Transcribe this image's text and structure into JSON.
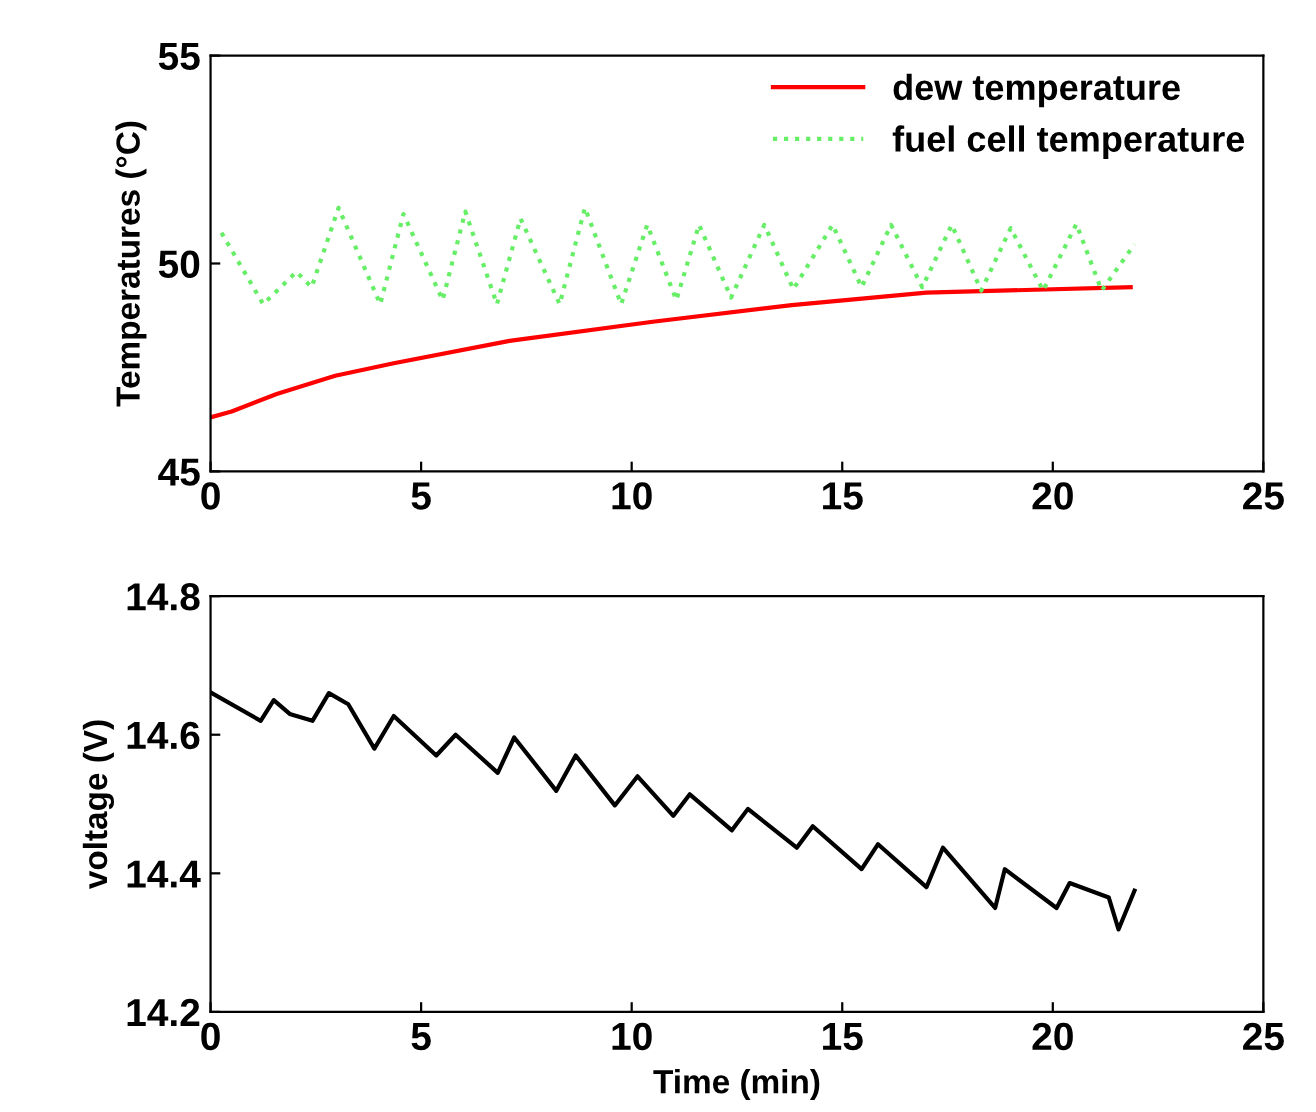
{
  "chart_data": [
    {
      "type": "line",
      "ylabel": "Temperatures (°C)",
      "xlim": [
        0,
        25
      ],
      "xticks": [
        0,
        5,
        10,
        15,
        20,
        25
      ],
      "ylim": [
        45,
        55
      ],
      "yticks": [
        45,
        50,
        55
      ],
      "legend": "top right",
      "grid": false,
      "series": [
        {
          "name": "dew temperature",
          "color": "#ff0000",
          "line_style": "solid",
          "x": [
            0,
            0.5,
            1.57,
            2.96,
            4.35,
            7.1,
            10.5,
            13.8,
            17.0,
            21.85
          ],
          "values": [
            46.3,
            46.44,
            46.86,
            47.3,
            47.6,
            48.14,
            48.6,
            49.0,
            49.3,
            49.43
          ]
        },
        {
          "name": "fuel cell temperature",
          "color": "#66ee66",
          "line_style": "dotted",
          "x": [
            0.26,
            1.25,
            2.04,
            2.4,
            3.04,
            4.03,
            4.58,
            5.51,
            6.05,
            6.8,
            7.36,
            8.29,
            8.89,
            9.75,
            10.37,
            11.06,
            11.6,
            12.36,
            13.15,
            13.84,
            14.77,
            15.46,
            16.16,
            16.9,
            17.6,
            18.3,
            19.0,
            19.77,
            20.56,
            21.16,
            21.94
          ],
          "values": [
            50.74,
            49.02,
            49.8,
            49.43,
            51.34,
            49.02,
            51.19,
            49.12,
            51.25,
            49.02,
            51.08,
            49.02,
            51.34,
            49.02,
            50.93,
            49.12,
            50.93,
            49.18,
            50.93,
            49.38,
            50.93,
            49.43,
            50.93,
            49.43,
            50.93,
            49.35,
            50.85,
            49.35,
            50.95,
            49.35,
            50.46
          ]
        }
      ]
    },
    {
      "type": "line",
      "xlabel": "Time (min)",
      "ylabel": "voltage (V)",
      "xlim": [
        0,
        25
      ],
      "xticks": [
        0,
        5,
        10,
        15,
        20,
        25
      ],
      "ylim": [
        14.2,
        14.8
      ],
      "yticks": [
        14.2,
        14.4,
        14.6,
        14.8
      ],
      "legend": false,
      "grid": false,
      "series": [
        {
          "color": "#000000",
          "line_style": "solid",
          "x": [
            0.03,
            1.19,
            1.5,
            1.88,
            2.42,
            2.81,
            3.27,
            3.89,
            4.35,
            5.36,
            5.82,
            6.82,
            7.21,
            8.21,
            8.67,
            9.6,
            10.14,
            10.99,
            11.38,
            12.38,
            12.76,
            13.92,
            14.3,
            15.46,
            15.85,
            17.0,
            17.39,
            18.63,
            18.86,
            20.09,
            20.4,
            21.33,
            21.56,
            21.94
          ],
          "values": [
            14.66,
            14.62,
            14.65,
            14.63,
            14.62,
            14.66,
            14.644,
            14.58,
            14.627,
            14.57,
            14.6,
            14.545,
            14.596,
            14.519,
            14.57,
            14.498,
            14.54,
            14.483,
            14.514,
            14.462,
            14.493,
            14.437,
            14.468,
            14.406,
            14.442,
            14.38,
            14.437,
            14.35,
            14.406,
            14.35,
            14.386,
            14.365,
            14.319,
            14.375
          ]
        }
      ]
    }
  ]
}
